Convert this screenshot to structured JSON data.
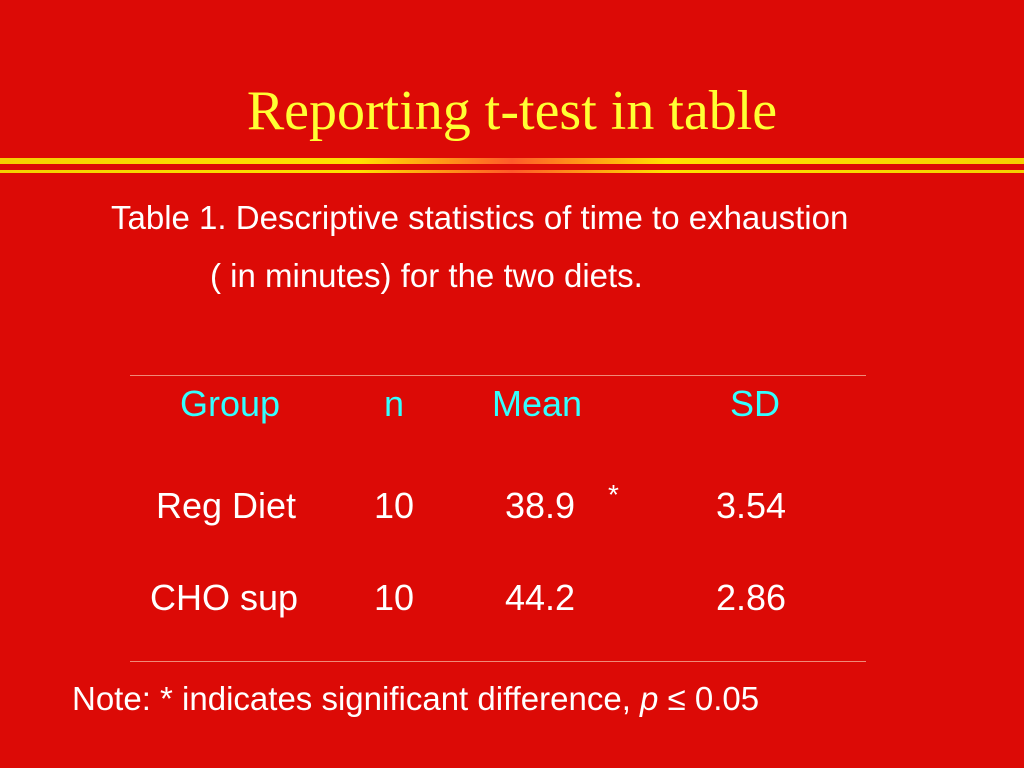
{
  "slide": {
    "title": "Reporting t-test in table",
    "caption_line1": "Table 1. Descriptive statistics of time to exhaustion",
    "caption_line2": "( in minutes) for the two diets."
  },
  "table": {
    "headers": {
      "group": "Group",
      "n": "n",
      "mean": "Mean",
      "sd": "SD"
    },
    "rows": [
      {
        "group": "Reg Diet",
        "n": "10",
        "mean": "38.9",
        "marker": "*",
        "sd": "3.54"
      },
      {
        "group": "CHO sup",
        "n": "10",
        "mean": "44.2",
        "marker": "",
        "sd": "2.86"
      }
    ]
  },
  "note": {
    "prefix": "Note: * indicates significant difference, ",
    "symbol": "p",
    "relation": "≤",
    "value": "0.05"
  },
  "colors": {
    "background": "#dc0a06",
    "title": "#ffff33",
    "header": "#33ffff",
    "body_text": "#ffffff"
  }
}
